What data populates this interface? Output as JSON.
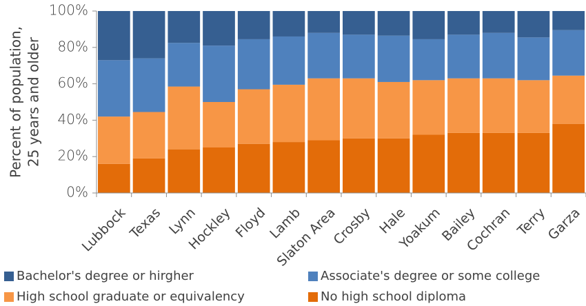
{
  "chart_data": {
    "type": "bar",
    "stacked": true,
    "ylabel_lines": [
      "Percent of population,",
      "25 years and older"
    ],
    "yticks": [
      "0%",
      "20%",
      "40%",
      "60%",
      "80%",
      "100%"
    ],
    "ylim": [
      0,
      100
    ],
    "categories": [
      "Lubbock",
      "Texas",
      "Lynn",
      "Hockley",
      "Floyd",
      "Lamb",
      "Slaton Area",
      "Crosby",
      "Hale",
      "Yoakum",
      "Bailey",
      "Cochran",
      "Terry",
      "Garza"
    ],
    "series": [
      {
        "name": "No high school diploma",
        "color": "#E36C09",
        "values": [
          16,
          19,
          24,
          25,
          27,
          28,
          29,
          30,
          30,
          32,
          33,
          33,
          33,
          38
        ]
      },
      {
        "name": "High school graduate or equivalency",
        "color": "#F79646",
        "values": [
          26,
          25.5,
          34.5,
          25,
          30,
          31.5,
          34,
          33,
          31,
          30,
          30,
          30,
          29,
          26.5
        ]
      },
      {
        "name": "Associate's degree or some college",
        "color": "#4F81BD",
        "values": [
          31,
          29.5,
          24,
          31,
          27.5,
          26.5,
          25,
          24,
          25.5,
          22.5,
          24,
          25,
          23.5,
          25
        ]
      },
      {
        "name": "Bachelor's degree or hirgher",
        "color": "#365F91",
        "values": [
          27,
          26,
          17.5,
          19,
          15.5,
          14,
          12,
          13,
          13.5,
          15.5,
          13,
          12,
          14.5,
          10.5
        ]
      }
    ],
    "legend": {
      "position": "bottom",
      "order": [
        3,
        2,
        1,
        0
      ]
    },
    "grid": false
  }
}
